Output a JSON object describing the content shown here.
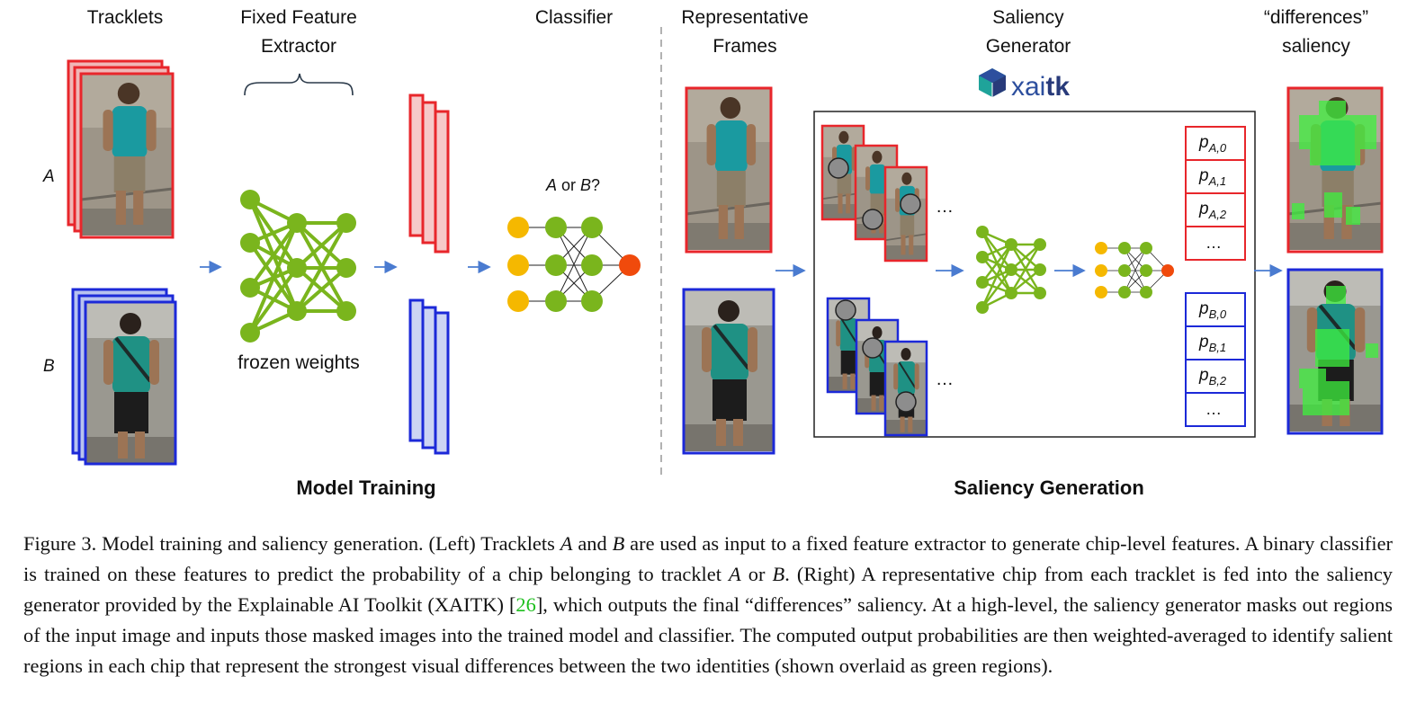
{
  "figure": {
    "headers": {
      "tracklets": "Tracklets",
      "feature_extractor_1": "Fixed Feature",
      "feature_extractor_2": "Extractor",
      "classifier": "Classifier",
      "representative_1": "Representative",
      "representative_2": "Frames",
      "saliency_gen_1": "Saliency",
      "saliency_gen_2": "Generator",
      "differences_1": "“differences”",
      "differences_2": "saliency"
    },
    "identity_a": "A",
    "identity_b": "B",
    "frozen_weights": "frozen weights",
    "classifier_question_a": "A",
    "classifier_question_mid": " or ",
    "classifier_question_b": "B",
    "classifier_question_end": "?",
    "logo_text_1": "xai",
    "logo_text_2": "tk",
    "ellipsis": "…",
    "prob_a": [
      {
        "base": "p",
        "sub": "A,0"
      },
      {
        "base": "p",
        "sub": "A,1"
      },
      {
        "base": "p",
        "sub": "A,2"
      }
    ],
    "prob_b": [
      {
        "base": "p",
        "sub": "B,0"
      },
      {
        "base": "p",
        "sub": "B,1"
      },
      {
        "base": "p",
        "sub": "B,2"
      }
    ],
    "section_left": "Model Training",
    "section_right": "Saliency Generation",
    "colors": {
      "red": "#e8262b",
      "blue": "#1c29d8",
      "green": "#7ab51d",
      "yellow": "#f5b800",
      "orange": "#f04a0c",
      "arrow": "#4a7bd0",
      "teal": "#1fa39a"
    }
  },
  "caption": {
    "s1": "Figure 3.  Model training and saliency generation.  (Left) Tracklets ",
    "a1": "A",
    "s2": " and ",
    "b1": "B",
    "s3": " are used as input to a fixed feature extractor to generate chip-level features. A binary classifier is trained on these features to predict the probability of a chip belonging to tracklet ",
    "a2": "A",
    "s4": " or ",
    "b2": "B",
    "s5": ". (Right) A representative chip from each tracklet is fed into the saliency generator provided by the Explainable AI Toolkit (XAITK) [",
    "ref": "26",
    "s6": "], which outputs the final “differences” saliency.  At a high-level, the saliency generator masks out regions of the input image and inputs those masked images into the trained model and classifier.  The computed output probabilities are then weighted-averaged to identify salient regions in each chip that represent the strongest visual differences between the two identities (shown overlaid as green regions)."
  }
}
